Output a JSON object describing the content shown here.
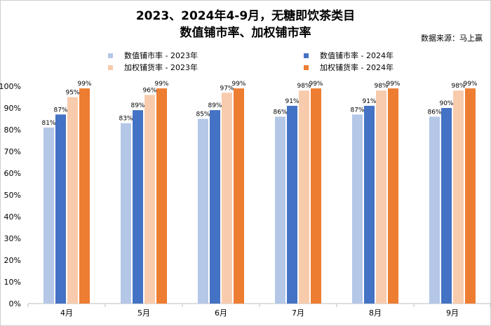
{
  "title_line1": "2023、2024年4-9月，无糖即饮茶类目",
  "title_line2": "数值铺市率、加权铺市率",
  "source": "数据来源：马上赢",
  "chart_data": {
    "type": "bar",
    "categories": [
      "4月",
      "5月",
      "6月",
      "7月",
      "8月",
      "9月"
    ],
    "series": [
      {
        "name": "数值铺市率 - 2023年",
        "color": "#b4c7e7",
        "values": [
          81,
          83,
          85,
          86,
          87,
          86
        ]
      },
      {
        "name": "数值铺市率 - 2024年",
        "color": "#4472c4",
        "values": [
          87,
          89,
          89,
          91,
          91,
          90
        ]
      },
      {
        "name": "加权铺货率 - 2023年",
        "color": "#f8cbad",
        "values": [
          95,
          96,
          97,
          98,
          98,
          98
        ]
      },
      {
        "name": "加权铺货率 - 2024年",
        "color": "#ed7d31",
        "values": [
          99,
          99,
          99,
          99,
          99,
          99
        ]
      }
    ],
    "value_suffix": "%",
    "ylim": [
      0,
      100
    ],
    "yticks": [
      "0%",
      "10%",
      "20%",
      "30%",
      "40%",
      "50%",
      "60%",
      "70%",
      "80%",
      "90%",
      "100%"
    ],
    "legend_position": "top",
    "grid": false
  }
}
